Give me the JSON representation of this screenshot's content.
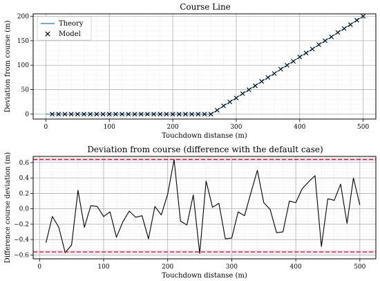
{
  "colors": {
    "theory": "#1f77b4",
    "model": "#000000",
    "deviation": "#000000",
    "limit": "#b22222",
    "band": "#e8c8e8",
    "grid_major": "#b0b0b0",
    "grid_minor": "#dcdcdc"
  },
  "chart_data": [
    {
      "type": "line",
      "title": "Course Line",
      "xlabel": "Touchdown distanse (m)",
      "ylabel": "Deviation from course (m)",
      "xlim": [
        -20,
        520
      ],
      "ylim": [
        -10,
        205
      ],
      "xticks": [
        0,
        100,
        200,
        300,
        400,
        500
      ],
      "yticks": [
        0,
        50,
        100,
        150,
        200
      ],
      "grid": true,
      "legend": "top-left",
      "series": [
        {
          "name": "Theory",
          "style": "line",
          "x": [
            0,
            260,
            500
          ],
          "y": [
            0,
            0,
            200
          ]
        },
        {
          "name": "Model",
          "style": "x-marker",
          "x": [
            10,
            20,
            30,
            40,
            50,
            60,
            70,
            80,
            90,
            100,
            110,
            120,
            130,
            140,
            150,
            160,
            170,
            180,
            190,
            200,
            210,
            220,
            230,
            240,
            250,
            260,
            270,
            280,
            290,
            300,
            310,
            320,
            330,
            340,
            350,
            360,
            370,
            380,
            390,
            400,
            410,
            420,
            430,
            440,
            450,
            460,
            470,
            480,
            490,
            500
          ],
          "y": [
            0,
            0,
            0,
            0,
            0,
            0,
            0,
            0,
            0,
            0,
            0,
            0,
            0,
            0,
            0,
            0,
            0,
            0,
            0,
            0,
            0,
            0,
            0,
            0,
            0,
            0,
            8,
            17,
            25,
            33,
            42,
            50,
            58,
            67,
            75,
            83,
            92,
            100,
            108,
            117,
            125,
            133,
            142,
            150,
            158,
            167,
            175,
            183,
            192,
            200
          ]
        }
      ]
    },
    {
      "type": "line",
      "title": "Deviation from course (difference with the default case)",
      "xlabel": "Touchdown distanse (m)",
      "ylabel": "Difference course deviation (m)",
      "xlim": [
        -10,
        525
      ],
      "ylim": [
        -0.65,
        0.68
      ],
      "xticks": [
        0,
        100,
        200,
        300,
        400,
        500
      ],
      "yticks": [
        -0.6,
        -0.4,
        -0.2,
        0.0,
        0.2,
        0.4,
        0.6
      ],
      "ytick_labels": [
        "−0.6",
        "−0.4",
        "−0.2",
        "0.0",
        "0.2",
        "0.4",
        "0.6"
      ],
      "grid": true,
      "limits": [
        0.64,
        -0.56
      ],
      "series": [
        {
          "style": "line",
          "x": [
            10,
            20,
            30,
            40,
            50,
            60,
            70,
            80,
            90,
            100,
            110,
            120,
            130,
            140,
            150,
            160,
            170,
            180,
            190,
            200,
            210,
            220,
            230,
            240,
            250,
            260,
            270,
            280,
            290,
            300,
            310,
            320,
            330,
            340,
            350,
            360,
            370,
            380,
            390,
            400,
            410,
            420,
            430,
            440,
            450,
            460,
            470,
            480,
            490,
            500
          ],
          "y": [
            -0.44,
            -0.1,
            -0.24,
            -0.57,
            -0.47,
            0.24,
            -0.24,
            0.04,
            0.03,
            -0.1,
            -0.04,
            -0.37,
            -0.17,
            -0.03,
            -0.11,
            -0.09,
            -0.39,
            0.03,
            -0.08,
            0.19,
            0.64,
            -0.16,
            -0.21,
            0.18,
            -0.58,
            0.36,
            0.02,
            0.07,
            -0.39,
            -0.38,
            -0.04,
            -0.09,
            0.21,
            0.5,
            0.08,
            -0.01,
            -0.31,
            -0.3,
            0.1,
            0.08,
            0.26,
            0.35,
            0.43,
            -0.49,
            0.13,
            0.11,
            0.32,
            -0.19,
            0.4,
            0.05
          ]
        }
      ]
    }
  ]
}
